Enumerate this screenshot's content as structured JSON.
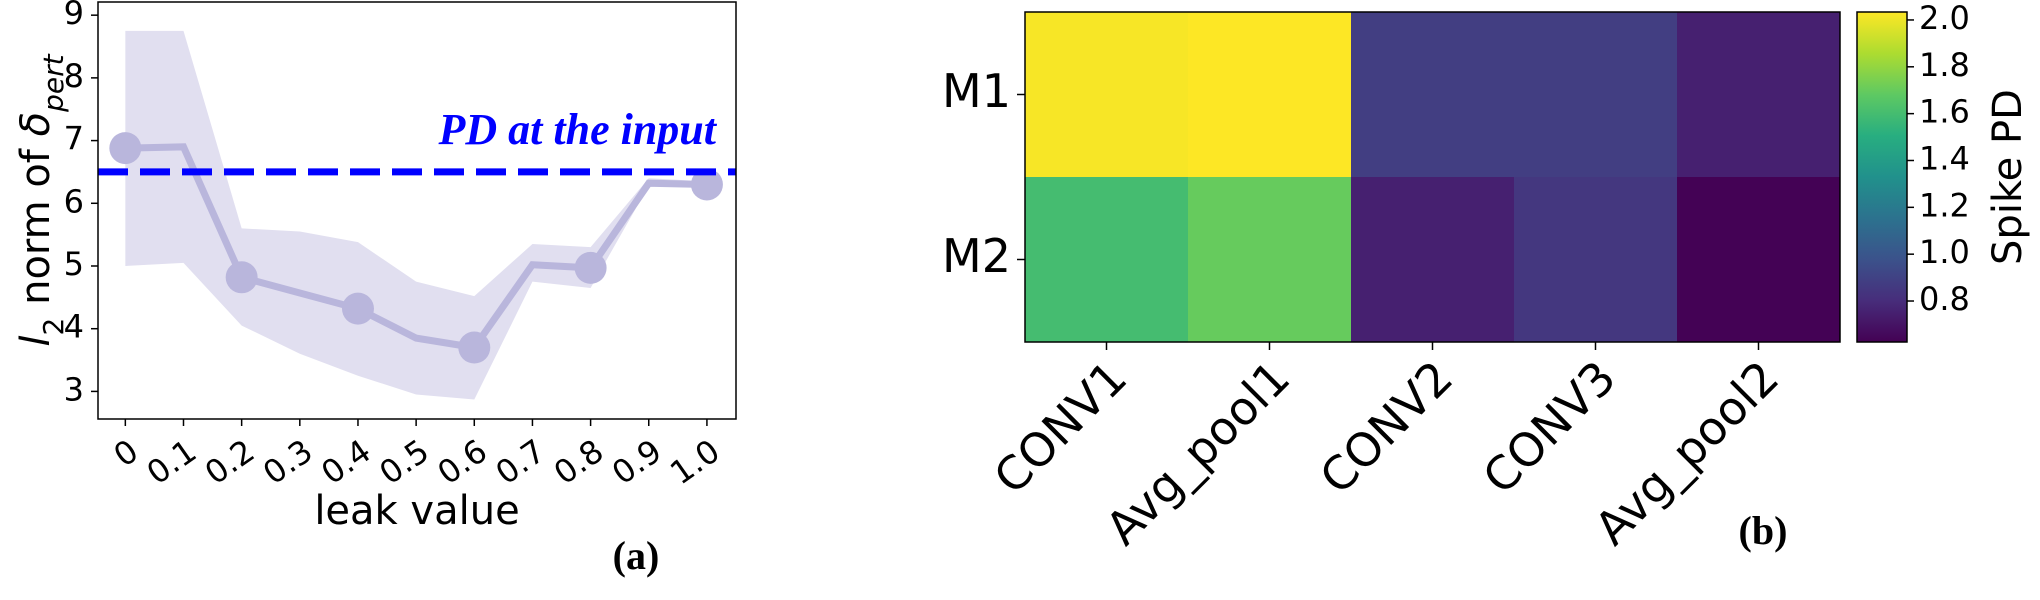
{
  "chart_data": [
    {
      "type": "line",
      "ylabel": [
        {
          "text": "l",
          "italic": true
        },
        {
          "text": "2",
          "sub": true
        },
        {
          "text": " norm of "
        },
        {
          "text": "δ",
          "italic": true
        },
        {
          "text": "pert",
          "sub": true,
          "italic": true
        }
      ],
      "xlabel": "leak value",
      "panel_label": "(a)",
      "x": [
        0,
        0.1,
        0.2,
        0.3,
        0.4,
        0.5,
        0.6,
        0.7,
        0.8,
        0.9,
        1
      ],
      "values": [
        6.88,
        6.9,
        4.82,
        4.57,
        4.32,
        3.85,
        3.7,
        5.02,
        4.97,
        6.32,
        6.3
      ],
      "band_lower": [
        5.0,
        5.05,
        4.05,
        3.6,
        3.25,
        2.95,
        2.87,
        4.75,
        4.65,
        6.28,
        6.25
      ],
      "band_upper": [
        8.75,
        8.75,
        5.6,
        5.55,
        5.38,
        4.75,
        4.52,
        5.35,
        5.3,
        6.4,
        6.35
      ],
      "marker_every": 2,
      "color": "#b9b6dc",
      "band_color": "#e1dff0",
      "hline": {
        "value": 6.5,
        "label": "PD at the input",
        "color": "#0000ff"
      },
      "xlim": [
        -0.047,
        1.05
      ],
      "ylim": [
        2.56,
        9.21
      ],
      "xticks": [
        0,
        0.1,
        0.2,
        0.3,
        0.4,
        0.5,
        0.6,
        0.7,
        0.8,
        0.9,
        {
          "value": 1,
          "label": "1.0"
        }
      ],
      "yticks": [
        3,
        4,
        5,
        6,
        7,
        8,
        9
      ]
    },
    {
      "type": "heatmap",
      "panel_label": "(b)",
      "rows": [
        "M1",
        "M2"
      ],
      "categories": [
        "CONV1",
        "Avg_pool1",
        "CONV2",
        "CONV3",
        "Avg_pool2"
      ],
      "values": [
        [
          2.02,
          2.05,
          0.88,
          0.88,
          0.75
        ],
        [
          1.6,
          1.7,
          0.75,
          0.85,
          0.63
        ]
      ],
      "colormap": "viridis",
      "colorbar_label": "Spike PD",
      "clim": [
        0.625,
        2.034
      ],
      "cticks": [
        0.8,
        {
          "value": 1,
          "label": "1.0"
        },
        1.2,
        1.4,
        1.6,
        1.8,
        {
          "value": 2,
          "label": "2.0"
        }
      ]
    }
  ]
}
